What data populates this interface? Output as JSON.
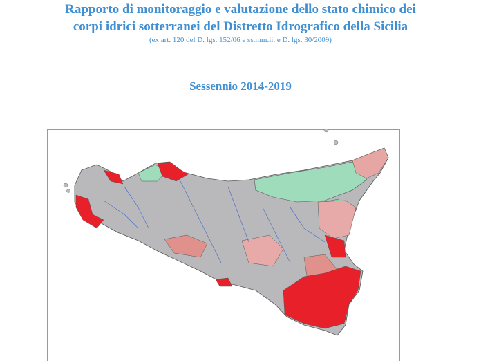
{
  "header": {
    "title_lines": [
      "Rapporto di monitoraggio e valutazione dello stato chimico dei",
      "corpi idrici sotterranei del Distretto Idrografico della Sicilia"
    ],
    "subtitle": "(ex art. 120 del D. lgs. 152/06 e ss.mm.ii. e D. lgs. 30/2009)",
    "period": "Sessennio 2014-2019"
  }
}
